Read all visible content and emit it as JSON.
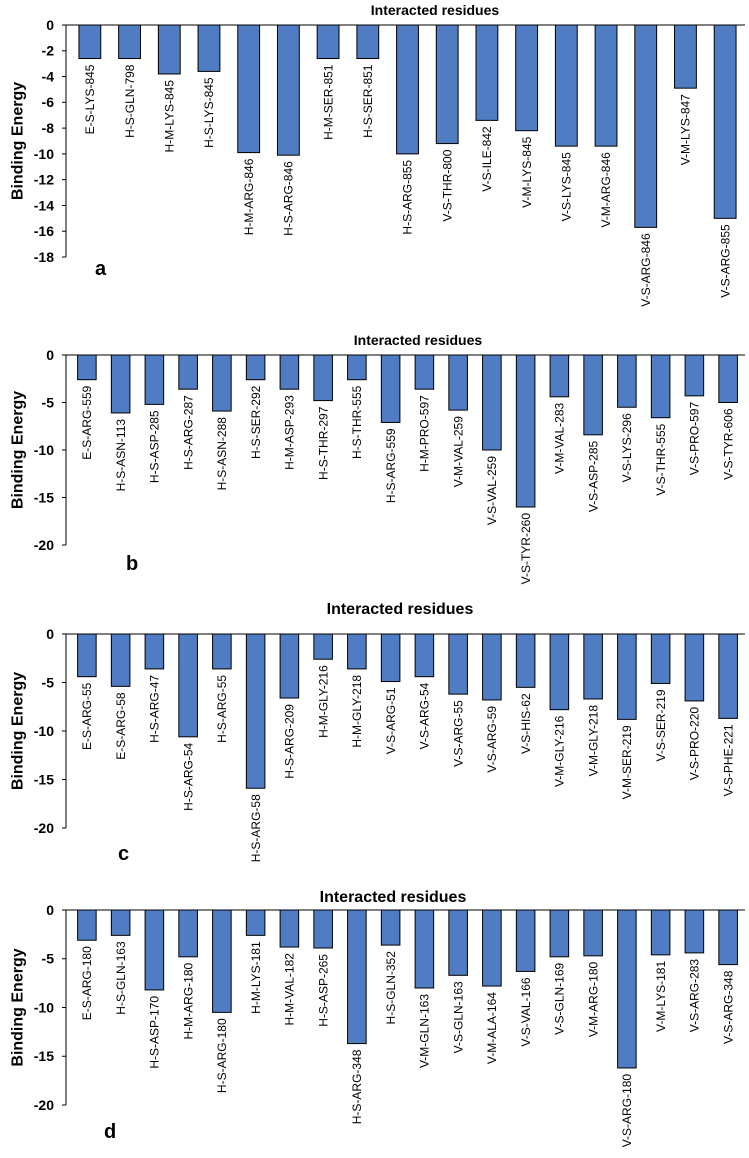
{
  "chart_data": [
    {
      "type": "bar",
      "panel_label": "a",
      "title": "Interacted residues",
      "xlabel": "",
      "ylabel": "Binding Energy",
      "ylim": [
        -18,
        0
      ],
      "yticks": [
        0,
        -2,
        -4,
        -6,
        -8,
        -10,
        -12,
        -14,
        -16,
        -18
      ],
      "categories": [
        "E-S-LYS-845",
        "H-S-GLN-798",
        "H-M-LYS-845",
        "H-S-LYS-845",
        "H-M-ARG-846",
        "H-S-ARG-846",
        "H-M-SER-851",
        "H-S-SER-851",
        "H-S-ARG-855",
        "V-S-THR-800",
        "V-S-ILE-842",
        "V-M-LYS-845",
        "V-S-LYS-845",
        "V-M-ARG-846",
        "V-S-ARG-846",
        "V-M-LYS-847",
        "V-S-ARG-855"
      ],
      "values": [
        -2.6,
        -2.6,
        -3.8,
        -3.6,
        -9.9,
        -10.1,
        -2.6,
        -2.6,
        -10.0,
        -9.2,
        -7.4,
        -8.2,
        -9.4,
        -9.4,
        -15.7,
        -4.9,
        -15.0
      ]
    },
    {
      "type": "bar",
      "panel_label": "b",
      "title": "Interacted residues",
      "xlabel": "",
      "ylabel": "Binding Energy",
      "ylim": [
        -20,
        0
      ],
      "yticks": [
        0,
        -5,
        -10,
        -15,
        -20
      ],
      "categories": [
        "E-S-ARG-559",
        "H-S-ASN-113",
        "H-S-ASP-285",
        "H-S-ARG-287",
        "H-S-ASN-288",
        "H-S-SER-292",
        "H-M-ASP-293",
        "H-S-THR-297",
        "H-S-THR-555",
        "H-S-ARG-559",
        "H-M-PRO-597",
        "V-M-VAL-259",
        "V-S-VAL-259",
        "V-S-TYR-260",
        "V-M-VAL-283",
        "V-S-ASP-285",
        "V-S-LYS-296",
        "V-S-THR-555",
        "V-S-PRO-597",
        "V-S-TYR-606"
      ],
      "values": [
        -2.6,
        -6.1,
        -5.2,
        -3.6,
        -5.9,
        -2.6,
        -3.6,
        -4.8,
        -2.6,
        -7.1,
        -3.6,
        -5.8,
        -10.0,
        -16.0,
        -4.4,
        -8.4,
        -5.5,
        -6.6,
        -4.3,
        -5.0
      ]
    },
    {
      "type": "bar",
      "panel_label": "c",
      "title": "Interacted residues",
      "xlabel": "",
      "ylabel": "Binding Energy",
      "ylim": [
        -20,
        0
      ],
      "yticks": [
        0,
        -5,
        -10,
        -15,
        -20
      ],
      "categories": [
        "E-S-ARG-55",
        "E-S-ARG-58",
        "H-S-ARG-47",
        "H-S-ARG-54",
        "H-S-ARG-55",
        "H-S-ARG-58",
        "H-S-ARG-209",
        "H-M-GLY-216",
        "H-M-GLY-218",
        "V-S-ARG-51",
        "V-S-ARG-54",
        "V-S-ARG-55",
        "V-S-ARG-59",
        "V-S-HIS-62",
        "V-M-GLY-216",
        "V-M-GLY-218",
        "V-M-SER-219",
        "V-S-SER-219",
        "V-S-PRO-220",
        "V-S-PHE-221"
      ],
      "values": [
        -4.4,
        -5.4,
        -3.6,
        -10.6,
        -3.6,
        -15.9,
        -6.6,
        -2.6,
        -3.6,
        -4.9,
        -4.4,
        -6.2,
        -6.8,
        -5.5,
        -7.8,
        -6.7,
        -8.8,
        -5.1,
        -6.9,
        -8.7
      ]
    },
    {
      "type": "bar",
      "panel_label": "d",
      "title": "Interacted residues",
      "xlabel": "",
      "ylabel": "Binding Energy",
      "ylim": [
        -20,
        0
      ],
      "yticks": [
        0,
        -5,
        -10,
        -15,
        -20
      ],
      "categories": [
        "E-S-ARG-180",
        "H-S-GLN-163",
        "H-S-ASP-170",
        "H-M-ARG-180",
        "H-S-ARG-180",
        "H-M-LYS-181",
        "H-M-VAL-182",
        "H-S-ASP-265",
        "H-S-ARG-348",
        "H-S-GLN-352",
        "V-M-GLN-163",
        "V-S-GLN-163",
        "V-M-ALA-164",
        "V-S-VAL-166",
        "V-S-GLN-169",
        "V-M-ARG-180",
        "V-S-ARG-180",
        "V-M-LYS-181",
        "V-S-ARG-283",
        "V-S-ARG-348"
      ],
      "values": [
        -3.1,
        -2.6,
        -8.2,
        -4.8,
        -10.5,
        -2.6,
        -3.8,
        -3.9,
        -13.7,
        -3.6,
        -8.0,
        -6.7,
        -7.8,
        -6.3,
        -4.8,
        -4.7,
        -16.2,
        -4.6,
        -4.4,
        -5.6
      ]
    }
  ]
}
